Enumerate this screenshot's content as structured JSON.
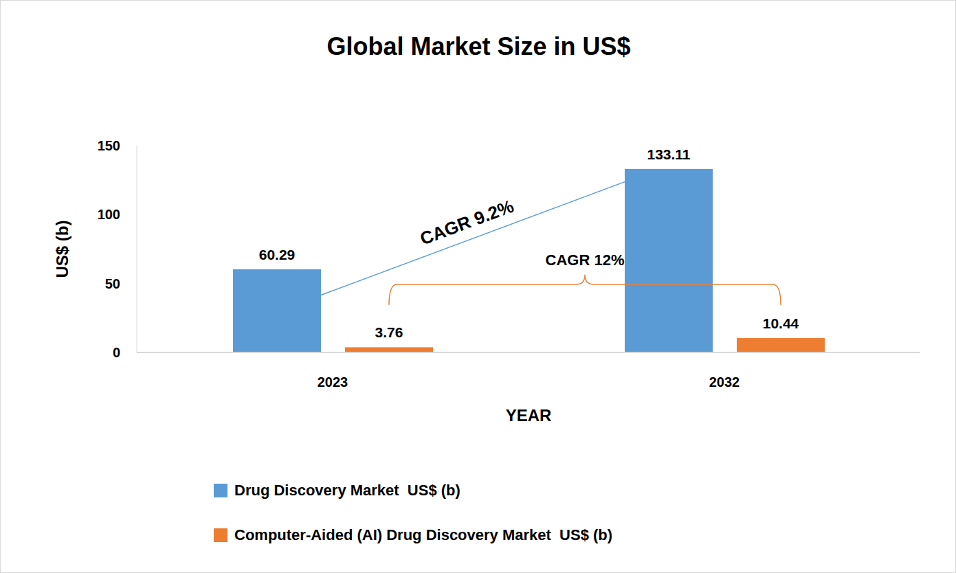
{
  "chart_data": {
    "type": "bar",
    "title": "Global Market Size in US$",
    "x_label": "YEAR",
    "y_label": "US$ (b)",
    "categories": [
      "2023",
      "2032"
    ],
    "series": [
      {
        "name": "Drug Discovery Market  US$ (b)",
        "color": "#5b9bd5",
        "values": [
          60.29,
          133.11
        ]
      },
      {
        "name": "Computer-Aided (AI) Drug Discovery Market  US$ (b)",
        "color": "#ed7d31",
        "values": [
          3.76,
          10.44
        ]
      }
    ],
    "ylim": [
      0,
      150
    ],
    "yticks": [
      0,
      50,
      100,
      150
    ],
    "grid": false,
    "data_labels": true,
    "legend": "bottom",
    "annotations": [
      {
        "text": "CAGR 9.2%",
        "series": "Drug Discovery Market  US$ (b)"
      },
      {
        "text": "CAGR 12%",
        "series": "Computer-Aided (AI) Drug Discovery Market  US$ (b)"
      }
    ]
  }
}
